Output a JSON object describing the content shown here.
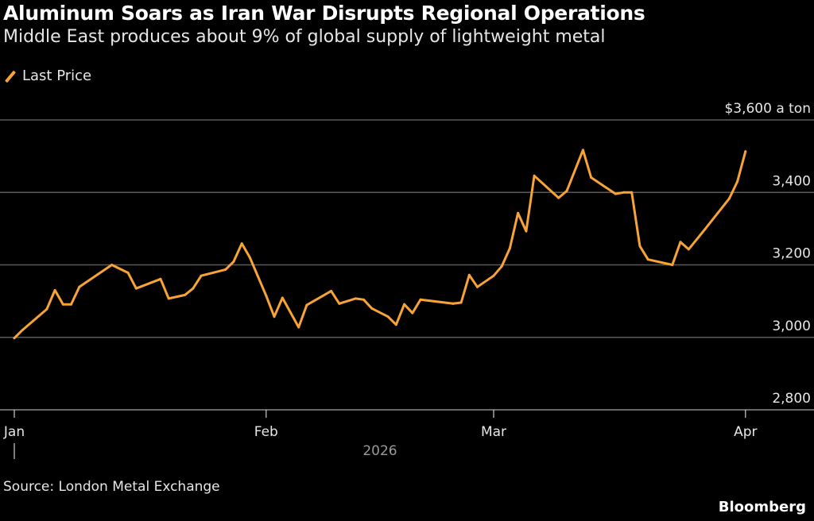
{
  "header": {
    "title": "Aluminum Soars as Iran War Disrupts Regional Operations",
    "subtitle": "Middle East produces about 9% of global supply of lightweight metal"
  },
  "footer": {
    "source": "Source: London Metal Exchange",
    "logo": "Bloomberg"
  },
  "colors": {
    "background": "#000000",
    "line": "#f7a336",
    "grid": "#5a5a5a",
    "text": "#e6e6e6"
  },
  "chart_data": {
    "type": "line",
    "title": "Aluminum Soars as Iran War Disrupts Regional Operations",
    "subtitle": "Middle East produces about 9% of global supply of lightweight metal",
    "legend": {
      "placement": "top-left",
      "entries": [
        "Last Price"
      ]
    },
    "grid": true,
    "ylim": [
      2800,
      3600
    ],
    "y_unit_label": "$3,600 a ton",
    "y_ticks": [
      {
        "value": 3600,
        "label": "$3,600 a ton"
      },
      {
        "value": 3400,
        "label": "3,400"
      },
      {
        "value": 3200,
        "label": "3,200"
      },
      {
        "value": 3000,
        "label": "3,000"
      },
      {
        "value": 2800,
        "label": "2,800"
      }
    ],
    "x_ticks": [
      {
        "date": "2026-01-01",
        "label": "Jan"
      },
      {
        "date": "2026-02-01",
        "label": "Feb"
      },
      {
        "date": "2026-03-01",
        "label": "Mar"
      },
      {
        "date": "2026-04-01",
        "label": "Apr"
      }
    ],
    "x_year_label": "2026",
    "series": [
      {
        "name": "Last Price",
        "x": [
          "2026-01-01",
          "2026-01-02",
          "2026-01-05",
          "2026-01-06",
          "2026-01-07",
          "2026-01-08",
          "2026-01-09",
          "2026-01-13",
          "2026-01-15",
          "2026-01-16",
          "2026-01-19",
          "2026-01-20",
          "2026-01-22",
          "2026-01-23",
          "2026-01-24",
          "2026-01-27",
          "2026-01-28",
          "2026-01-29",
          "2026-01-30",
          "2026-02-01",
          "2026-02-02",
          "2026-02-03",
          "2026-02-05",
          "2026-02-06",
          "2026-02-09",
          "2026-02-10",
          "2026-02-12",
          "2026-02-13",
          "2026-02-14",
          "2026-02-16",
          "2026-02-17",
          "2026-02-18",
          "2026-02-19",
          "2026-02-20",
          "2026-02-24",
          "2026-02-25",
          "2026-02-26",
          "2026-02-27",
          "2026-03-01",
          "2026-03-02",
          "2026-03-03",
          "2026-03-04",
          "2026-03-05",
          "2026-03-06",
          "2026-03-09",
          "2026-03-10",
          "2026-03-12",
          "2026-03-13",
          "2026-03-16",
          "2026-03-17",
          "2026-03-18",
          "2026-03-19",
          "2026-03-20",
          "2026-03-23",
          "2026-03-24",
          "2026-03-25",
          "2026-03-27",
          "2026-03-30",
          "2026-03-31",
          "2026-04-01"
        ],
        "values": [
          2998,
          3020,
          3078,
          3130,
          3091,
          3091,
          3139,
          3200,
          3178,
          3135,
          3161,
          3107,
          3117,
          3135,
          3170,
          3187,
          3209,
          3259,
          3220,
          3115,
          3057,
          3109,
          3028,
          3089,
          3128,
          3093,
          3107,
          3104,
          3080,
          3057,
          3035,
          3091,
          3067,
          3104,
          3093,
          3096,
          3172,
          3139,
          3170,
          3196,
          3246,
          3343,
          3293,
          3446,
          3385,
          3404,
          3517,
          3441,
          3396,
          3400,
          3400,
          3252,
          3215,
          3200,
          3263,
          3243,
          3298,
          3383,
          3430,
          3513
        ]
      }
    ]
  }
}
